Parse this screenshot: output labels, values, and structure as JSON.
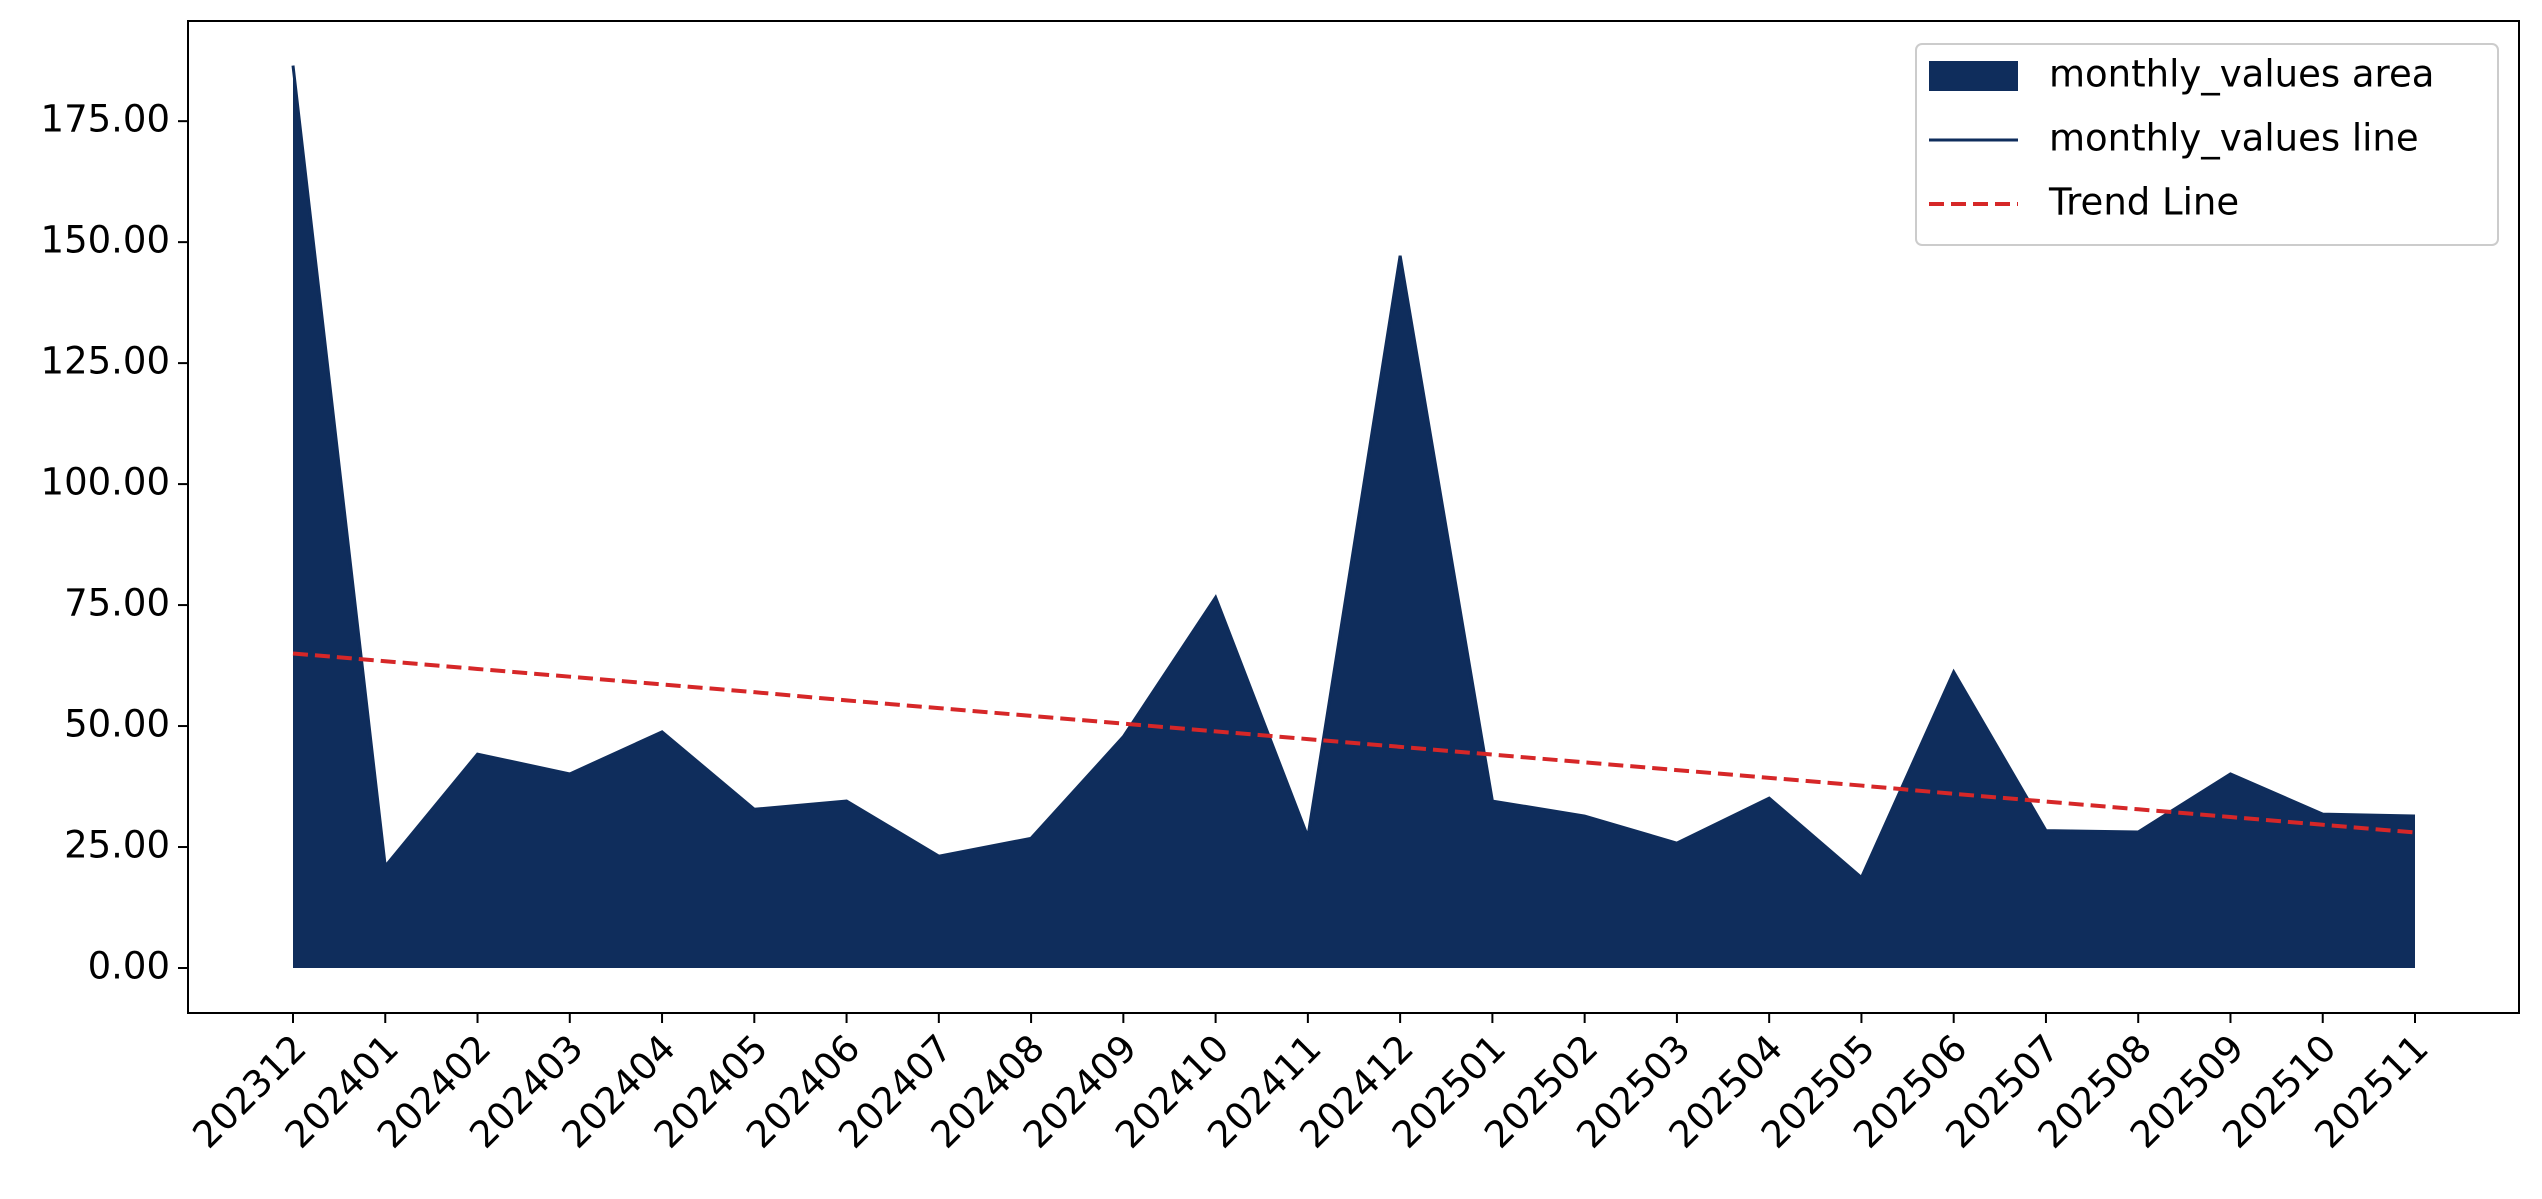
{
  "chart_data": {
    "type": "area",
    "categories": [
      "202312",
      "202401",
      "202402",
      "202403",
      "202404",
      "202405",
      "202406",
      "202407",
      "202408",
      "202409",
      "202410",
      "202411",
      "202412",
      "202501",
      "202502",
      "202503",
      "202504",
      "202505",
      "202506",
      "202507",
      "202508",
      "202509",
      "202510",
      "202511"
    ],
    "series": [
      {
        "name": "monthly_values area",
        "color": "#0f2d5c",
        "style": "area",
        "values": [
          186.5,
          21,
          44.2,
          40.1,
          48.8,
          32.8,
          34.5,
          23.1,
          26.8,
          47.8,
          76.6,
          27.1,
          147.2,
          34.5,
          31.4,
          25.8,
          35.1,
          18.7,
          61.2,
          28.4,
          28.1,
          40.1,
          31.8,
          31.4
        ]
      },
      {
        "name": "monthly_values line",
        "color": "#0f2d5c",
        "style": "line",
        "values": [
          186.5,
          21,
          44.2,
          40.1,
          48.8,
          32.8,
          34.5,
          23.1,
          26.8,
          47.8,
          76.6,
          27.1,
          147.2,
          34.5,
          31.4,
          25.8,
          35.1,
          18.7,
          61.2,
          28.4,
          28.1,
          40.1,
          31.8,
          31.4
        ]
      },
      {
        "name": "Trend Line",
        "color": "#d62728",
        "style": "dashed",
        "values": [
          65,
          63.4,
          61.8,
          60.2,
          58.6,
          57,
          55.3,
          53.7,
          52.1,
          50.5,
          48.9,
          47.3,
          45.7,
          44.1,
          42.5,
          40.9,
          39.3,
          37.7,
          36,
          34.4,
          32.8,
          31.2,
          29.6,
          28
        ]
      }
    ],
    "ylim": [
      -9.3,
      195.7
    ],
    "yticks": [
      {
        "value": 0,
        "label": "0.00"
      },
      {
        "value": 25,
        "label": "25.00"
      },
      {
        "value": 50,
        "label": "50.00"
      },
      {
        "value": 75,
        "label": "75.00"
      },
      {
        "value": 100,
        "label": "100.00"
      },
      {
        "value": 125,
        "label": "125.00"
      },
      {
        "value": 150,
        "label": "150.00"
      },
      {
        "value": 175,
        "label": "175.00"
      }
    ],
    "legend": "upper right"
  }
}
